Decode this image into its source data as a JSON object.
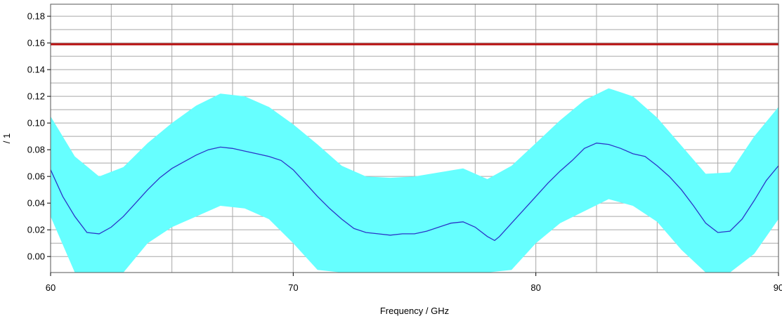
{
  "chart_data": {
    "type": "line",
    "title": "",
    "xlabel": "Frequency / GHz",
    "ylabel": "/ 1",
    "xlim": [
      60,
      90
    ],
    "ylim": [
      -0.012,
      0.189
    ],
    "grid": true,
    "x_ticks": [
      60,
      70,
      80,
      90
    ],
    "x_tick_labels": [
      "60",
      "70",
      "80",
      "90"
    ],
    "x_minor_step": 2.5,
    "y_ticks": [
      0.0,
      0.02,
      0.04,
      0.06,
      0.08,
      0.1,
      0.12,
      0.14,
      0.16,
      0.18
    ],
    "y_tick_labels": [
      "0.00",
      "0.02",
      "0.04",
      "0.06",
      "0.08",
      "0.10",
      "0.12",
      "0.14",
      "0.16",
      "0.18"
    ],
    "colors": {
      "band": "#66ffff",
      "mean_line": "#2b35c8",
      "limit_line": "#b81010",
      "grid": "#a8a8a8"
    },
    "limit_line": {
      "y": 0.159
    },
    "mean_series": {
      "x": [
        60,
        60.5,
        61,
        61.5,
        62,
        62.5,
        63,
        63.5,
        64,
        64.5,
        65,
        65.5,
        66,
        66.5,
        67,
        67.5,
        68,
        68.5,
        69,
        69.5,
        70,
        70.5,
        71,
        71.5,
        72,
        72.5,
        73,
        73.5,
        74,
        74.5,
        75,
        75.5,
        76,
        76.5,
        77,
        77.5,
        78,
        78.3,
        78.5,
        79,
        79.5,
        80,
        80.5,
        81,
        81.5,
        82,
        82.5,
        83,
        83.5,
        84,
        84.5,
        85,
        85.5,
        86,
        86.5,
        87,
        87.5,
        88,
        88.5,
        89,
        89.5,
        90
      ],
      "y": [
        0.065,
        0.045,
        0.03,
        0.018,
        0.017,
        0.022,
        0.03,
        0.04,
        0.05,
        0.059,
        0.066,
        0.071,
        0.076,
        0.08,
        0.082,
        0.081,
        0.079,
        0.077,
        0.075,
        0.072,
        0.065,
        0.055,
        0.045,
        0.036,
        0.028,
        0.021,
        0.018,
        0.017,
        0.016,
        0.017,
        0.017,
        0.019,
        0.022,
        0.025,
        0.026,
        0.022,
        0.015,
        0.012,
        0.015,
        0.025,
        0.035,
        0.045,
        0.055,
        0.064,
        0.072,
        0.081,
        0.085,
        0.084,
        0.081,
        0.077,
        0.075,
        0.068,
        0.06,
        0.05,
        0.038,
        0.025,
        0.018,
        0.019,
        0.028,
        0.042,
        0.057,
        0.068
      ]
    },
    "band_series": {
      "x": [
        60,
        61,
        62,
        63,
        64,
        65,
        66,
        67,
        68,
        69,
        70,
        71,
        72,
        73,
        74,
        75,
        76,
        77,
        78,
        79,
        80,
        81,
        82,
        83,
        84,
        85,
        86,
        87,
        88,
        89,
        90
      ],
      "upper": [
        0.105,
        0.075,
        0.06,
        0.067,
        0.085,
        0.1,
        0.113,
        0.122,
        0.12,
        0.112,
        0.099,
        0.084,
        0.068,
        0.06,
        0.059,
        0.06,
        0.063,
        0.066,
        0.058,
        0.068,
        0.085,
        0.102,
        0.117,
        0.126,
        0.12,
        0.104,
        0.083,
        0.062,
        0.063,
        0.09,
        0.112
      ],
      "lower": [
        0.03,
        -0.012,
        -0.012,
        -0.012,
        0.01,
        0.022,
        0.03,
        0.038,
        0.036,
        0.028,
        0.01,
        -0.01,
        -0.012,
        -0.012,
        -0.012,
        -0.012,
        -0.012,
        -0.012,
        -0.012,
        -0.01,
        0.01,
        0.025,
        0.034,
        0.043,
        0.038,
        0.026,
        0.005,
        -0.012,
        -0.012,
        0.002,
        0.028
      ]
    }
  }
}
